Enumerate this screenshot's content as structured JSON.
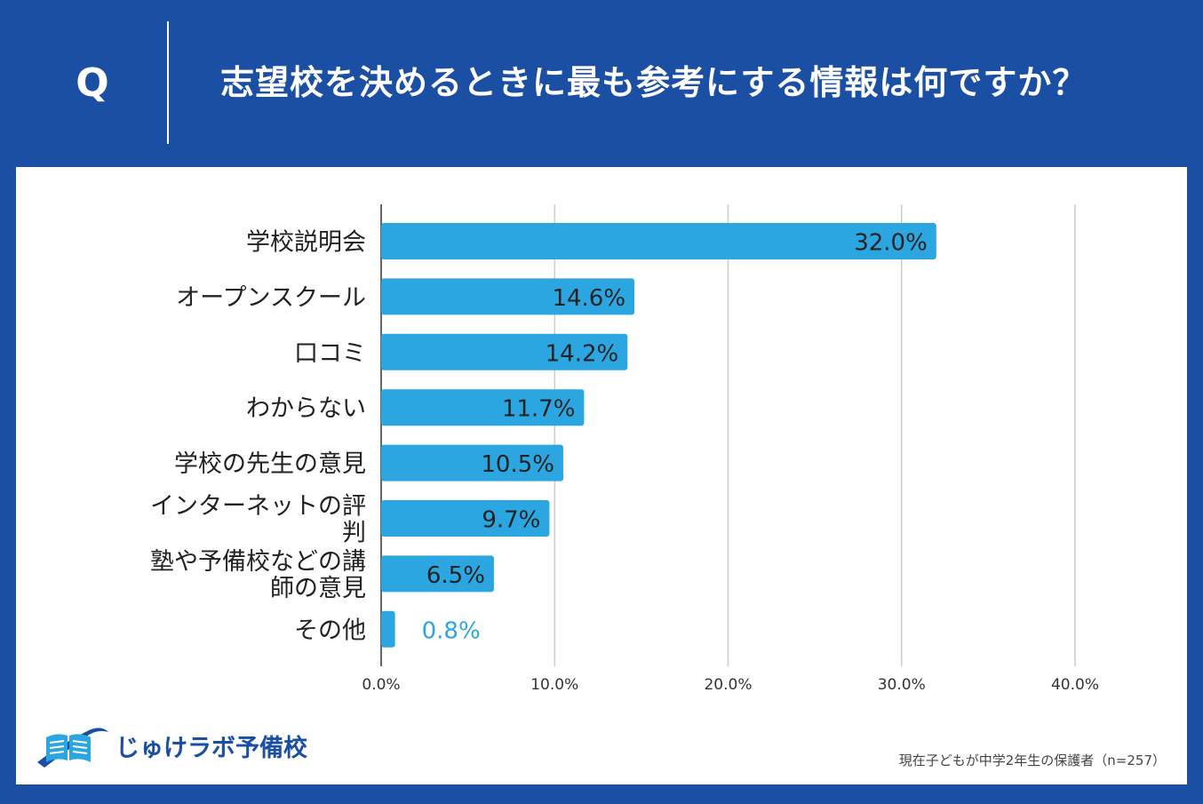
{
  "header": {
    "q_label": "Q",
    "question": "志望校を決めるときに最も参考にする情報は何ですか？"
  },
  "colors": {
    "background": "#1a4fa3",
    "bar": "#2ca6e0",
    "grid": "#cccccc",
    "axis": "#333333",
    "small_value_label": "#2ca6e0"
  },
  "chart_data": {
    "type": "bar",
    "orientation": "horizontal",
    "categories": [
      [
        "学校説明会"
      ],
      [
        "オープンスクール"
      ],
      [
        "口コミ"
      ],
      [
        "わからない"
      ],
      [
        "学校の先生の意見"
      ],
      [
        "インターネットの評",
        "判"
      ],
      [
        "塾や予備校などの講",
        "師の意見"
      ],
      [
        "その他"
      ]
    ],
    "values": [
      32.0,
      14.6,
      14.2,
      11.7,
      10.5,
      9.7,
      6.5,
      0.8
    ],
    "value_labels": [
      "32.0%",
      "14.6%",
      "14.2%",
      "11.7%",
      "10.5%",
      "9.7%",
      "6.5%",
      "0.8%"
    ],
    "xlim": [
      0,
      40
    ],
    "xticks": [
      0,
      10,
      20,
      30,
      40
    ],
    "xtick_labels": [
      "0.0%",
      "10.0%",
      "20.0%",
      "30.0%",
      "40.0%"
    ],
    "grid": true,
    "legend": "none"
  },
  "logo": {
    "text": "じゅけラボ予備校",
    "icon": "book-icon"
  },
  "footnote": "現在子どもが中学2年生の保護者（n=257）"
}
